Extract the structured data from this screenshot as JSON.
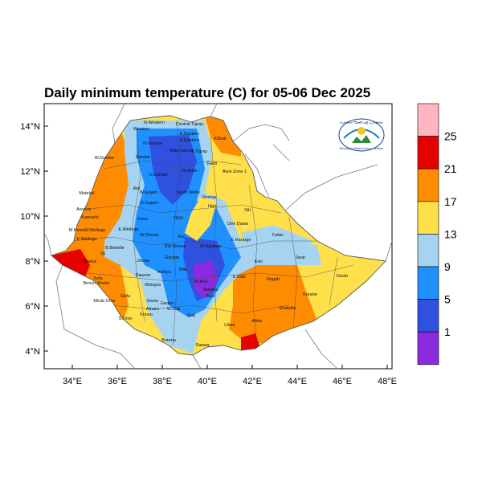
{
  "title": "Daily minimum temperature (C) for 05-06 Dec 2025",
  "axes": {
    "lat_ticks": [
      "14°N",
      "12°N",
      "10°N",
      "8°N",
      "6°N",
      "4°N"
    ],
    "lon_ticks": [
      "34°E",
      "36°E",
      "38°E",
      "40°E",
      "42°E",
      "44°E",
      "46°E",
      "48°E"
    ]
  },
  "colorbar": {
    "labels": [
      "25",
      "21",
      "17",
      "13",
      "9",
      "5",
      "1"
    ],
    "colors": [
      "#ffb6c1",
      "#e60000",
      "#ff8c00",
      "#ffe04a",
      "#a6d4f0",
      "#1e90ff",
      "#3050e0",
      "#8a2be2"
    ]
  },
  "regions": [
    {
      "name": "N.Western"
    },
    {
      "name": "Central Tigray"
    },
    {
      "name": "Western"
    },
    {
      "name": "E.Eastern"
    },
    {
      "name": "Kilbati"
    },
    {
      "name": "N.Gondar"
    },
    {
      "name": "S.Eastern"
    },
    {
      "name": "Wag Hamra"
    },
    {
      "name": "S.Tigray"
    },
    {
      "name": "W.Gondar"
    },
    {
      "name": "Gondar"
    },
    {
      "name": "Fanti"
    },
    {
      "name": "Awsi Zone 1"
    },
    {
      "name": "S.Gondar"
    },
    {
      "name": "N.Wollo"
    },
    {
      "name": "Metekel"
    },
    {
      "name": "Awi"
    },
    {
      "name": "W.Gojam"
    },
    {
      "name": "South Wollo"
    },
    {
      "name": "Oromia"
    },
    {
      "name": "Hari"
    },
    {
      "name": "Assosa"
    },
    {
      "name": "E.Gojam"
    },
    {
      "name": "Siti"
    },
    {
      "name": "Kamashi"
    },
    {
      "name": "Horo"
    },
    {
      "name": "NSH"
    },
    {
      "name": "Dire Dawa"
    },
    {
      "name": "M.Komo"
    },
    {
      "name": "W.Wellega"
    },
    {
      "name": "E.Wellega"
    },
    {
      "name": "W.Shewa"
    },
    {
      "name": "Fafan"
    },
    {
      "name": "K.Wellega"
    },
    {
      "name": "Ilu"
    },
    {
      "name": "W.Hararge"
    },
    {
      "name": "E.Hararge"
    },
    {
      "name": "B.Bedelle"
    },
    {
      "name": "SW.Shewa"
    },
    {
      "name": "Arsi"
    },
    {
      "name": "Jimma"
    },
    {
      "name": "Gurage"
    },
    {
      "name": "Erer"
    },
    {
      "name": "Jarar"
    },
    {
      "name": "Sheka"
    },
    {
      "name": "Kefa"
    },
    {
      "name": "Silte"
    },
    {
      "name": "Hadiya"
    },
    {
      "name": "Bench Sheko"
    },
    {
      "name": "Dawuro"
    },
    {
      "name": "Wolayta"
    },
    {
      "name": "W.Arsi"
    },
    {
      "name": "Bale"
    },
    {
      "name": "E.Bale"
    },
    {
      "name": "Nogob"
    },
    {
      "name": "Doolo"
    },
    {
      "name": "Mirab Omo"
    },
    {
      "name": "Gofa"
    },
    {
      "name": "Sidama"
    },
    {
      "name": "Gamo"
    },
    {
      "name": "Gedeo"
    },
    {
      "name": "Amaro"
    },
    {
      "name": "W.Guji"
    },
    {
      "name": "Guji"
    },
    {
      "name": "Korahe"
    },
    {
      "name": "Shabelle"
    },
    {
      "name": "S.Omo"
    },
    {
      "name": "Konso"
    },
    {
      "name": "Liban"
    },
    {
      "name": "Afder"
    },
    {
      "name": "Borena"
    },
    {
      "name": "Daawa"
    }
  ],
  "logo": {
    "top_text": "የኢትዮጵያ ሜቲዎሮሎጂ ኢንስቲትዩት",
    "bottom_text": "Ethiopian Meteorology Institute"
  }
}
